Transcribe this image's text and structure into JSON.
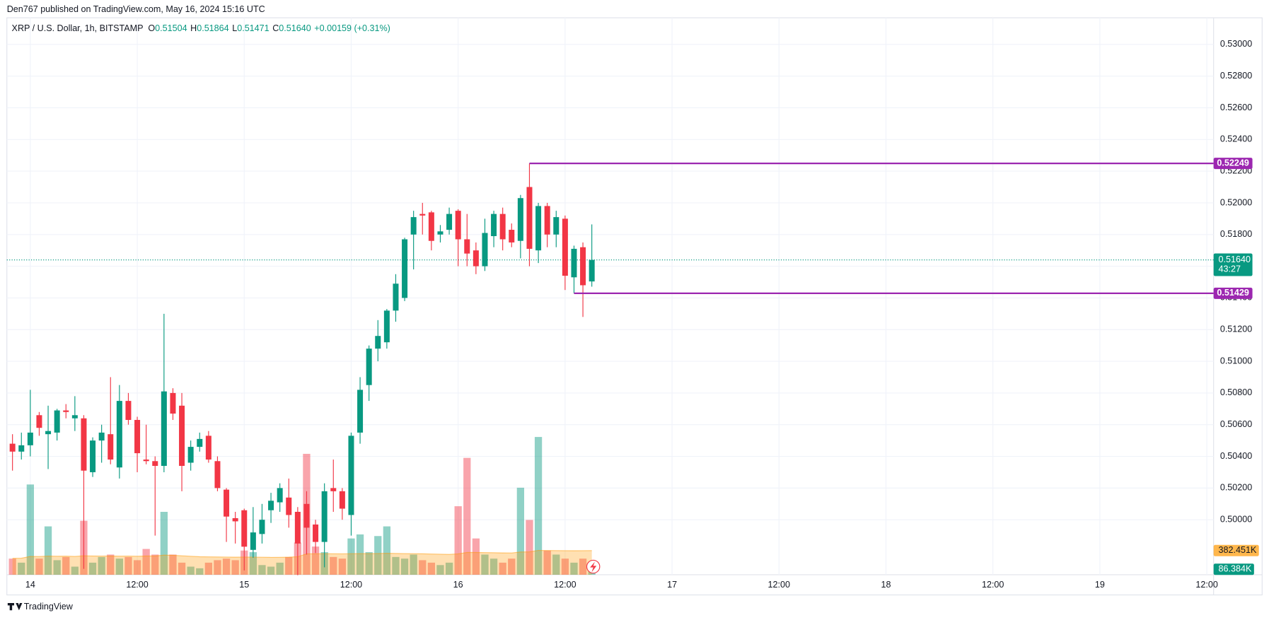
{
  "header": {
    "byline": "Den767 published on TradingView.com, May 16, 2024 15:16 UTC",
    "footer": "TradingView"
  },
  "chart_data": {
    "type": "candlestick",
    "symbol": "XRP / U.S. Dollar, 1h, BITSTAMP",
    "legend": [
      {
        "label": "O",
        "value": "0.51504"
      },
      {
        "label": "H",
        "value": "0.51864"
      },
      {
        "label": "L",
        "value": "0.51471"
      },
      {
        "label": "C",
        "value": "0.51640"
      }
    ],
    "change": "+0.00159 (+0.31%)",
    "x": [
      -2,
      -1,
      0,
      1,
      2,
      3,
      4,
      5,
      6,
      7,
      8,
      9,
      10,
      11,
      12,
      13,
      14,
      15,
      16,
      17,
      18,
      19,
      20,
      21,
      22,
      23,
      24,
      25,
      26,
      27,
      28,
      29,
      30,
      31,
      32,
      33,
      34,
      35,
      36,
      37,
      38,
      39,
      40,
      41,
      42,
      43,
      44,
      45,
      46,
      47,
      48,
      49,
      50,
      51,
      52,
      53,
      54,
      55,
      56,
      57,
      58,
      59,
      60,
      61,
      62,
      63
    ],
    "open": [
      0.5048,
      0.5043,
      0.5047,
      0.5066,
      0.5054,
      0.5055,
      0.5069,
      0.5064,
      0.5064,
      0.503,
      0.505,
      0.5054,
      0.5033,
      0.5075,
      0.5063,
      0.5038,
      0.5037,
      0.5034,
      0.508,
      0.5072,
      0.5036,
      0.5046,
      0.5053,
      0.5037,
      0.5019,
      0.5001,
      0.5006,
      0.4981,
      0.4991,
      0.5006,
      0.5011,
      0.5014,
      0.5005,
      0.501,
      0.4997,
      0.4986,
      0.502,
      0.5018,
      0.5003,
      0.5055,
      0.5085,
      0.5108,
      0.5112,
      0.5132,
      0.514,
      0.518,
      0.5193,
      0.5194,
      0.518,
      0.5183,
      0.5195,
      0.5177,
      0.517,
      0.516,
      0.5179,
      0.5193,
      0.5183,
      0.5176,
      0.521,
      0.517,
      0.5198,
      0.518,
      0.519,
      0.5153,
      0.5172,
      0.51504
    ],
    "high": [
      0.5054,
      0.5055,
      0.5082,
      0.5068,
      0.5072,
      0.507,
      0.5073,
      0.5078,
      0.5066,
      0.5052,
      0.506,
      0.509,
      0.5085,
      0.508,
      0.5065,
      0.506,
      0.504,
      0.513,
      0.5083,
      0.508,
      0.505,
      0.5055,
      0.5056,
      0.504,
      0.502,
      0.5005,
      0.5007,
      0.5008,
      0.501,
      0.5017,
      0.5023,
      0.5026,
      0.5008,
      0.5018,
      0.5,
      0.5023,
      0.5038,
      0.502,
      0.5055,
      0.509,
      0.511,
      0.5126,
      0.5133,
      0.5155,
      0.5178,
      0.5195,
      0.52,
      0.5195,
      0.5186,
      0.5197,
      0.5196,
      0.5193,
      0.5175,
      0.519,
      0.5195,
      0.5197,
      0.5187,
      0.5205,
      0.52249,
      0.52,
      0.52,
      0.5195,
      0.5192,
      0.5173,
      0.5175,
      0.51864
    ],
    "low": [
      0.5031,
      0.5038,
      0.504,
      0.5053,
      0.5032,
      0.505,
      0.5064,
      0.5056,
      0.4969,
      0.5027,
      0.5036,
      0.5035,
      0.5026,
      0.506,
      0.503,
      0.5035,
      0.499,
      0.503,
      0.5063,
      0.5018,
      0.5031,
      0.5043,
      0.5036,
      0.5018,
      0.4986,
      0.4985,
      0.4968,
      0.4976,
      0.4985,
      0.4998,
      0.5005,
      0.4995,
      0.4965,
      0.4978,
      0.4979,
      0.497,
      0.5005,
      0.5,
      0.499,
      0.5048,
      0.5075,
      0.51,
      0.5108,
      0.5125,
      0.5138,
      0.5158,
      0.518,
      0.517,
      0.5175,
      0.518,
      0.516,
      0.516,
      0.5155,
      0.5157,
      0.5172,
      0.517,
      0.5172,
      0.5165,
      0.516,
      0.5162,
      0.5172,
      0.5172,
      0.5145,
      0.5143,
      0.5128,
      0.51471
    ],
    "close": [
      0.5043,
      0.5047,
      0.5055,
      0.5058,
      0.5056,
      0.5069,
      0.5068,
      0.5066,
      0.5031,
      0.505,
      0.5055,
      0.5038,
      0.5075,
      0.5063,
      0.5042,
      0.5037,
      0.5034,
      0.5081,
      0.5067,
      0.5034,
      0.5046,
      0.5051,
      0.5038,
      0.502,
      0.5002,
      0.4999,
      0.4983,
      0.4992,
      0.5,
      0.5012,
      0.502,
      0.5003,
      0.4985,
      0.4995,
      0.4986,
      0.5018,
      0.5018,
      0.5007,
      0.5053,
      0.5082,
      0.5108,
      0.5116,
      0.5132,
      0.5149,
      0.5177,
      0.5191,
      0.5192,
      0.5176,
      0.5182,
      0.5193,
      0.5177,
      0.5168,
      0.516,
      0.5181,
      0.5193,
      0.5177,
      0.5175,
      0.5203,
      0.5171,
      0.5198,
      0.518,
      0.5191,
      0.5154,
      0.5171,
      0.5148,
      0.5164
    ],
    "volume": [
      255,
      191,
      1428,
      255,
      765,
      230,
      281,
      128,
      854,
      191,
      281,
      319,
      255,
      281,
      230,
      408,
      319,
      995,
      319,
      191,
      128,
      102,
      191,
      230,
      255,
      230,
      383,
      357,
      153,
      128,
      191,
      281,
      510,
      1913,
      446,
      357,
      281,
      255,
      574,
      638,
      357,
      612,
      765,
      281,
      255,
      319,
      230,
      191,
      153,
      191,
      1084,
      1849,
      574,
      319,
      255,
      191,
      255,
      1377,
      867,
      2180,
      383,
      319,
      255,
      191,
      255,
      86.384
    ],
    "volume_ma": [
      260,
      262,
      290,
      288,
      295,
      293,
      294,
      290,
      300,
      296,
      295,
      296,
      294,
      295,
      293,
      296,
      297,
      310,
      308,
      300,
      292,
      285,
      283,
      282,
      280,
      278,
      280,
      279,
      277,
      275,
      276,
      278,
      285,
      330,
      332,
      333,
      332,
      330,
      333,
      335,
      334,
      336,
      340,
      337,
      334,
      333,
      331,
      328,
      325,
      322,
      330,
      352,
      352,
      350,
      348,
      345,
      344,
      360,
      362,
      385,
      383,
      382,
      381,
      380,
      381,
      382.451
    ],
    "up_color": "#089981",
    "down_color": "#f23645",
    "volume_ma_color": "#ff9800",
    "xlim": [
      -2.63,
      132.76
    ],
    "ylim": [
      0.49653,
      0.53168
    ],
    "y2lim": [
      0,
      2200
    ],
    "grid": true,
    "xticks": [
      {
        "value": 0,
        "label": "14"
      },
      {
        "value": 12,
        "label": "12:00"
      },
      {
        "value": 24,
        "label": "15"
      },
      {
        "value": 36,
        "label": "12:00"
      },
      {
        "value": 48,
        "label": "16"
      },
      {
        "value": 60,
        "label": "12:00"
      },
      {
        "value": 72,
        "label": "17"
      },
      {
        "value": 84,
        "label": "12:00"
      },
      {
        "value": 96,
        "label": "18"
      },
      {
        "value": 108,
        "label": "12:00"
      },
      {
        "value": 120,
        "label": "19"
      },
      {
        "value": 132,
        "label": "12:00"
      }
    ],
    "yticks": [
      {
        "value": 0.53,
        "label": "0.53000"
      },
      {
        "value": 0.528,
        "label": "0.52800"
      },
      {
        "value": 0.526,
        "label": "0.52600"
      },
      {
        "value": 0.524,
        "label": "0.52400"
      },
      {
        "value": 0.522,
        "label": "0.52200"
      },
      {
        "value": 0.52,
        "label": "0.52000"
      },
      {
        "value": 0.518,
        "label": "0.51800"
      },
      {
        "value": 0.516,
        "label": "0.51600"
      },
      {
        "value": 0.514,
        "label": "0.51400"
      },
      {
        "value": 0.512,
        "label": "0.51200"
      },
      {
        "value": 0.51,
        "label": "0.51000"
      },
      {
        "value": 0.508,
        "label": "0.50800"
      },
      {
        "value": 0.506,
        "label": "0.50600"
      },
      {
        "value": 0.504,
        "label": "0.50400"
      },
      {
        "value": 0.502,
        "label": "0.50200"
      },
      {
        "value": 0.5,
        "label": "0.50000"
      }
    ],
    "hlines": [
      {
        "value": 0.52249,
        "start": 56,
        "color": "#9c27b0"
      },
      {
        "value": 0.51429,
        "start": 61,
        "color": "#9c27b0"
      }
    ],
    "last_price": {
      "value": 0.5164,
      "label": "0.51640"
    },
    "countdown": "43:27",
    "volume_ma_last": {
      "value": 382.451,
      "label": "382.451K"
    },
    "volume_last": {
      "value": 86.384,
      "label": "86.384K"
    }
  }
}
